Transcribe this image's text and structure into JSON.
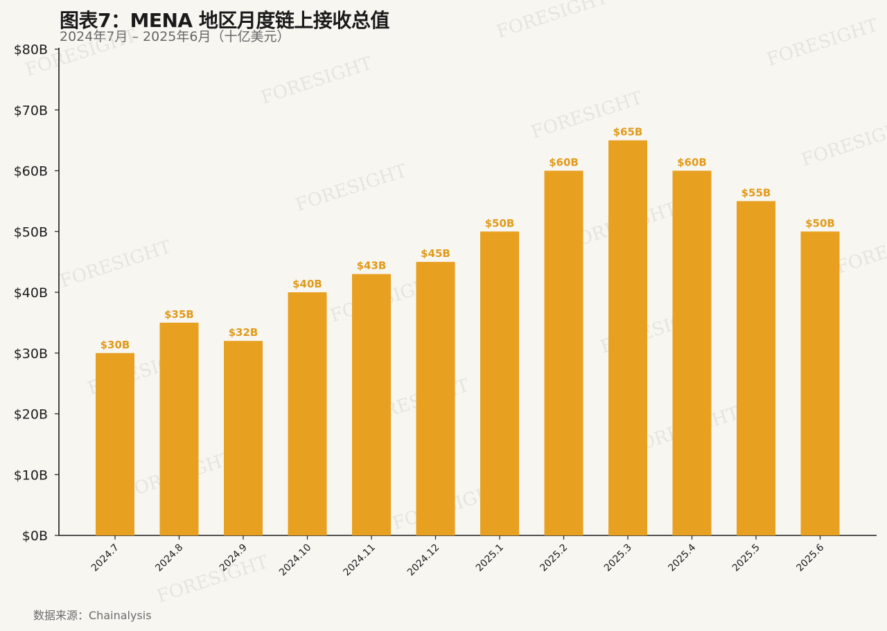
{
  "title": "图表7：MENA 地区月度链上接收总值",
  "subtitle": "2024年7月 – 2025年6月（十亿美元）",
  "source": "数据来源：Chainalysis",
  "watermark": "FORESIGHT",
  "colors": {
    "bar": "#e8a020",
    "label": "#e09a1a",
    "axis": "#1a1a1a",
    "background": "#f8f6f1"
  },
  "chart_data": {
    "type": "bar",
    "categories": [
      "2024.7",
      "2024.8",
      "2024.9",
      "2024.10",
      "2024.11",
      "2024.12",
      "2025.1",
      "2025.2",
      "2025.3",
      "2025.4",
      "2025.5",
      "2025.6"
    ],
    "values": [
      30,
      35,
      32,
      40,
      43,
      45,
      50,
      60,
      65,
      60,
      55,
      50
    ],
    "data_labels": [
      "$30B",
      "$35B",
      "$32B",
      "$40B",
      "$43B",
      "$45B",
      "$50B",
      "$60B",
      "$65B",
      "$60B",
      "$55B",
      "$50B"
    ],
    "ylim": [
      0,
      80
    ],
    "yticks": [
      0,
      10,
      20,
      30,
      40,
      50,
      60,
      70,
      80
    ],
    "ytick_labels": [
      "$0B",
      "$10B",
      "$20B",
      "$30B",
      "$40B",
      "$50B",
      "$60B",
      "$70B",
      "$80B"
    ],
    "xlabel": "",
    "ylabel": "",
    "grid": false,
    "legend": "none"
  }
}
